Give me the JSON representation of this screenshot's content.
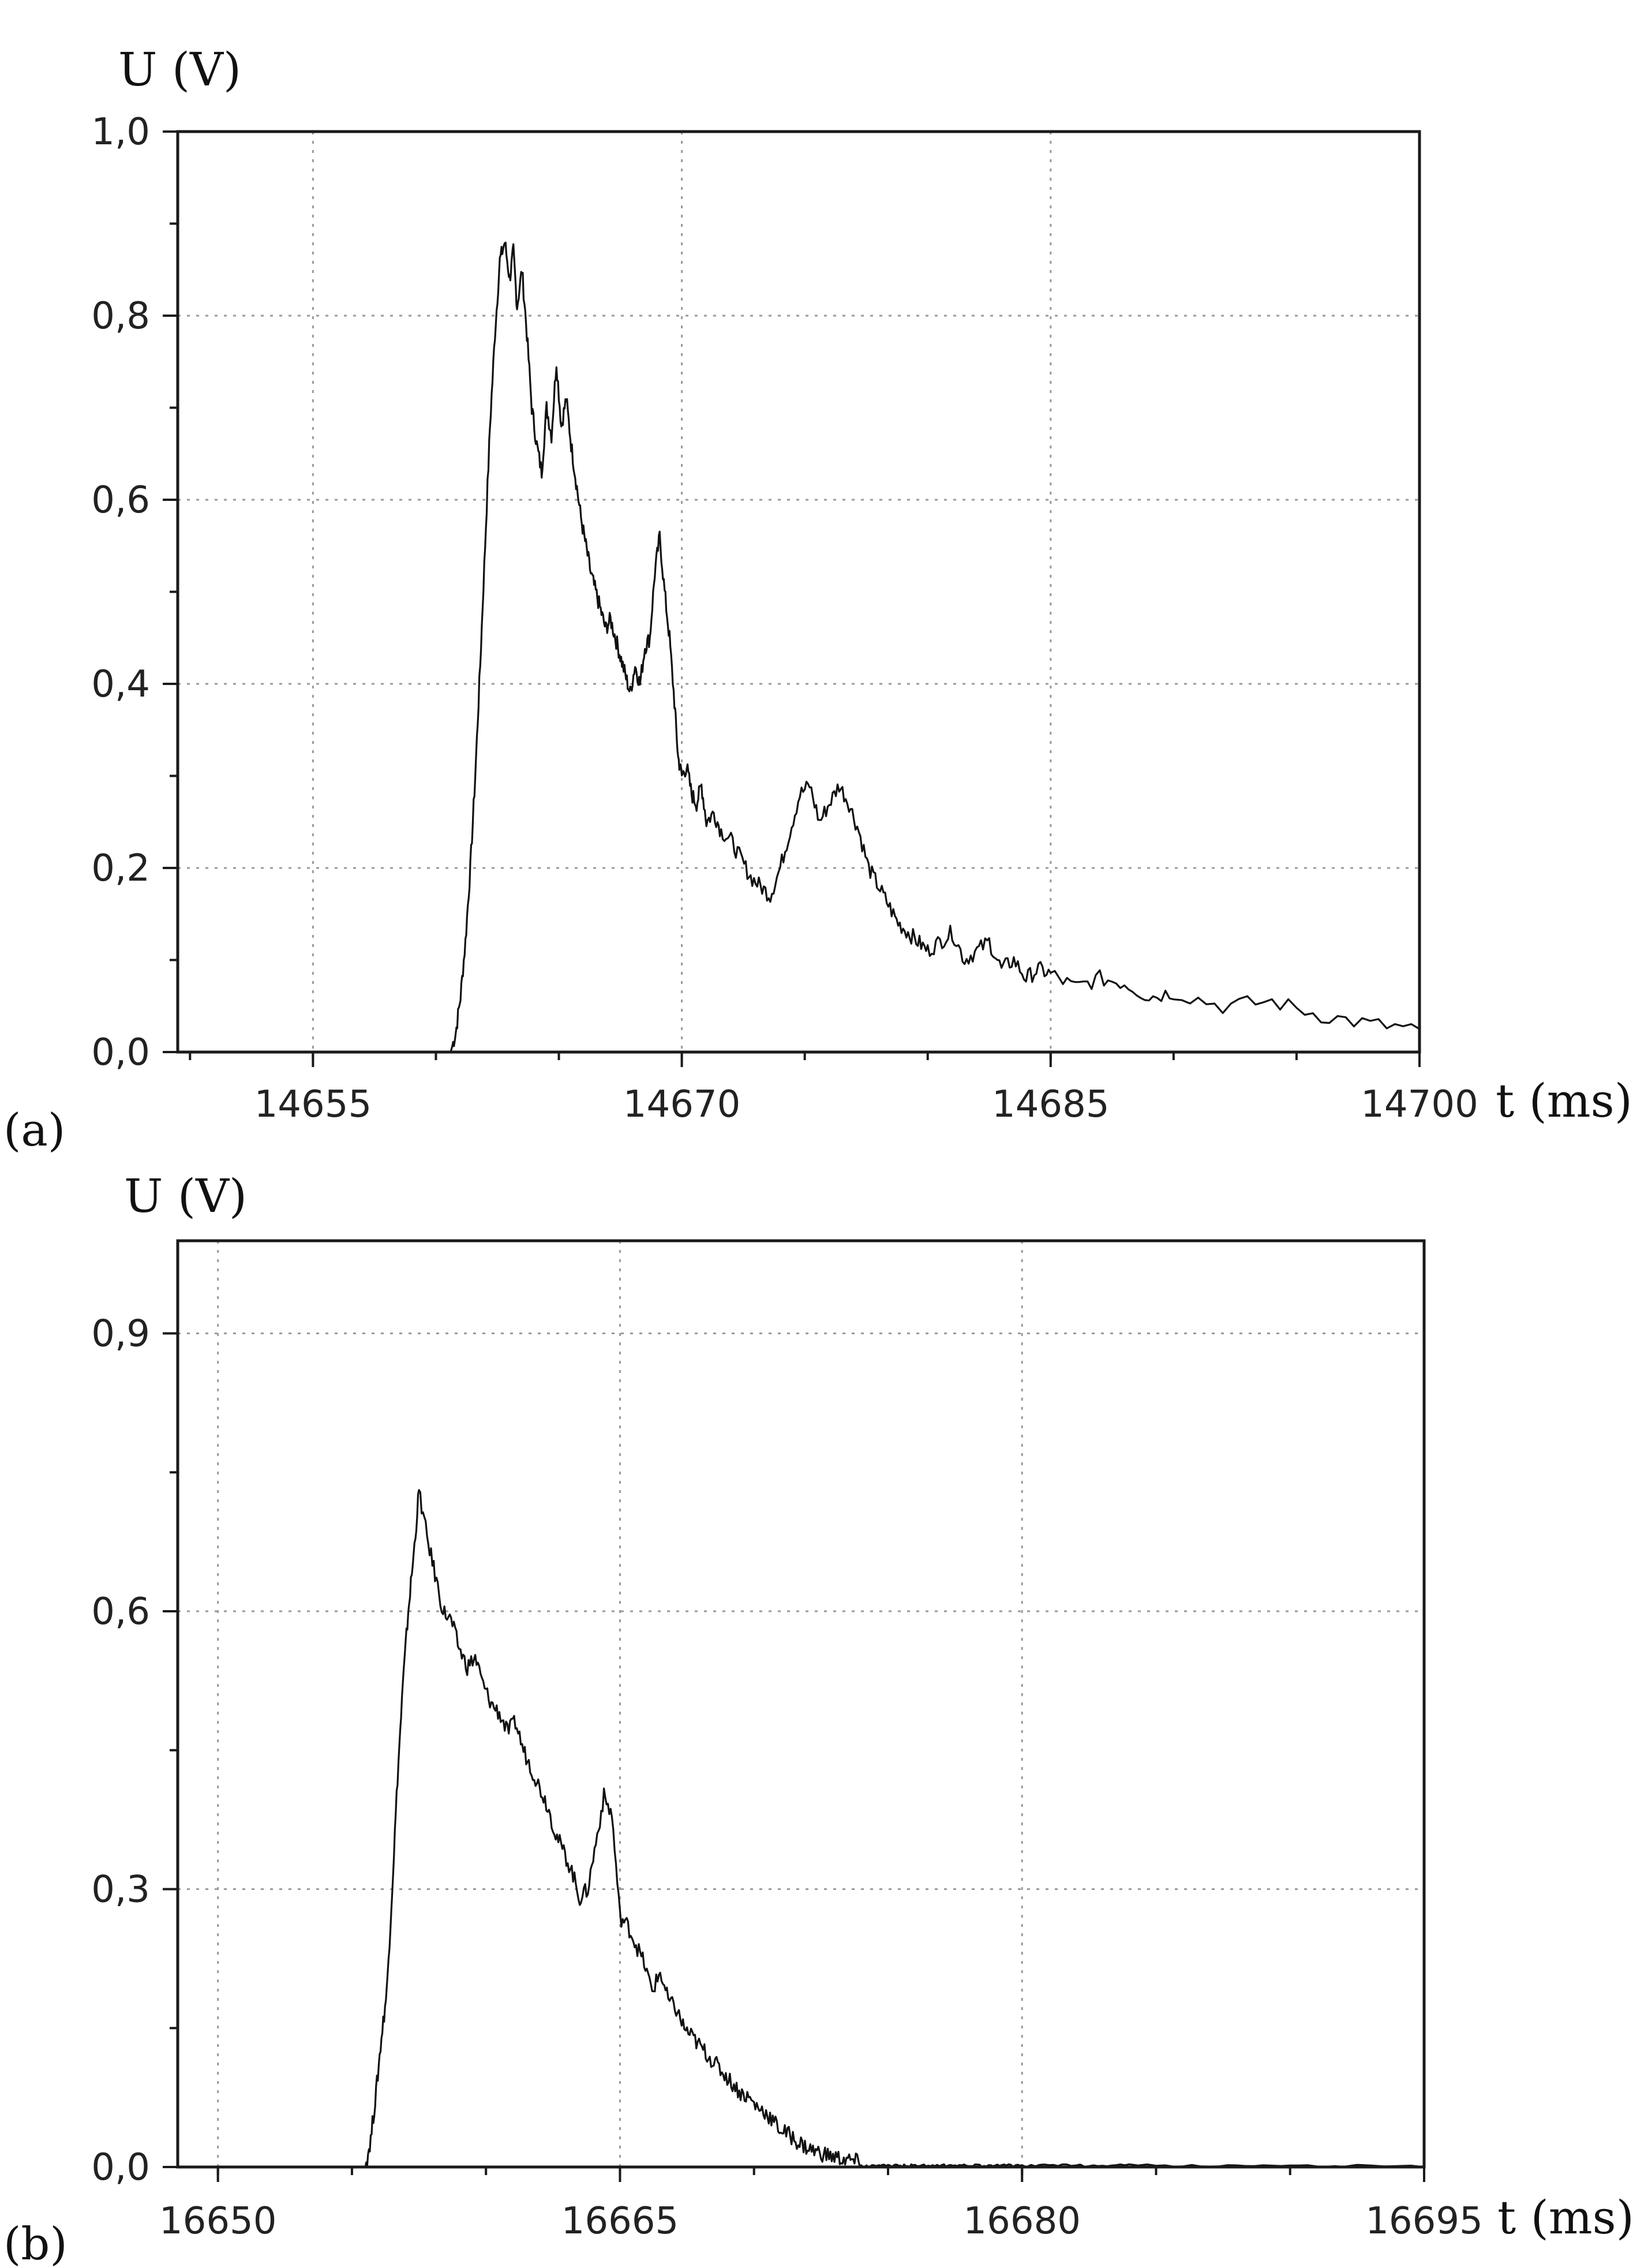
{
  "chart_data": [
    {
      "type": "line",
      "panel_label": "(a)",
      "xlabel": "t (ms)",
      "ylabel": "U (V)",
      "xlim": [
        14649.5,
        14700
      ],
      "ylim": [
        0,
        1.0
      ],
      "xticks": [
        "14655",
        "14670",
        "14685",
        "14700"
      ],
      "yticks": [
        "0,0",
        "0,2",
        "0,4",
        "0,6",
        "0,8",
        "1,0"
      ],
      "grid": true,
      "series": [
        {
          "x": [
            14649.5,
            14660.6,
            14660.8,
            14661.0,
            14661.2,
            14661.4,
            14661.6,
            14661.8,
            14662.0,
            14662.2,
            14662.4,
            14662.6,
            14662.8,
            14663.0,
            14663.15,
            14663.3,
            14663.5,
            14663.7,
            14663.9,
            14664.1,
            14664.3,
            14664.5,
            14664.7,
            14664.9,
            14665.1,
            14665.3,
            14665.5,
            14665.7,
            14665.9,
            14666.1,
            14666.3,
            14666.5,
            14666.7,
            14666.9,
            14667.1,
            14667.3,
            14667.5,
            14667.7,
            14667.9,
            14668.1,
            14668.3,
            14668.5,
            14668.7,
            14668.9,
            14669.1,
            14669.3,
            14669.5,
            14669.7,
            14669.85,
            14670.0,
            14670.2,
            14670.4,
            14670.6,
            14670.8,
            14671.0,
            14671.3,
            14671.6,
            14672.0,
            14672.4,
            14672.8,
            14673.2,
            14673.6,
            14674.0,
            14674.4,
            14674.8,
            14675.2,
            14675.6,
            14676.0,
            14676.4,
            14676.8,
            14677.2,
            14677.6,
            14678.0,
            14678.4,
            14678.8,
            14679.2,
            14679.6,
            14680.0,
            14680.5,
            14681.0,
            14681.5,
            14682.0,
            14682.5,
            14683.0,
            14683.5,
            14684.0,
            14684.5,
            14685.0,
            14686.0,
            14687.0,
            14688.0,
            14689.0,
            14690.0,
            14692.0,
            14694.0,
            14696.0,
            14698.0,
            14700.0
          ],
          "y": [
            0.0,
            0.0,
            0.02,
            0.06,
            0.12,
            0.2,
            0.3,
            0.42,
            0.55,
            0.68,
            0.78,
            0.86,
            0.88,
            0.84,
            0.87,
            0.81,
            0.85,
            0.78,
            0.7,
            0.66,
            0.63,
            0.7,
            0.67,
            0.75,
            0.68,
            0.71,
            0.66,
            0.62,
            0.58,
            0.55,
            0.52,
            0.5,
            0.48,
            0.46,
            0.47,
            0.45,
            0.43,
            0.41,
            0.39,
            0.42,
            0.4,
            0.44,
            0.45,
            0.52,
            0.56,
            0.5,
            0.45,
            0.38,
            0.32,
            0.3,
            0.31,
            0.28,
            0.27,
            0.29,
            0.25,
            0.26,
            0.24,
            0.23,
            0.21,
            0.19,
            0.18,
            0.17,
            0.2,
            0.24,
            0.28,
            0.29,
            0.25,
            0.27,
            0.29,
            0.27,
            0.24,
            0.2,
            0.18,
            0.16,
            0.14,
            0.13,
            0.12,
            0.11,
            0.12,
            0.13,
            0.1,
            0.11,
            0.12,
            0.09,
            0.1,
            0.08,
            0.09,
            0.085,
            0.07,
            0.08,
            0.075,
            0.06,
            0.065,
            0.05,
            0.055,
            0.04,
            0.03,
            0.025
          ]
        }
      ]
    },
    {
      "type": "line",
      "panel_label": "(b)",
      "xlabel": "t (ms)",
      "ylabel": "U (V)",
      "xlim": [
        16648.5,
        16695
      ],
      "ylim": [
        0,
        1.0
      ],
      "xticks": [
        "16650",
        "16665",
        "16680",
        "16695"
      ],
      "yticks": [
        "0,0",
        "0,3",
        "0,6",
        "0,9"
      ],
      "grid": true,
      "series": [
        {
          "x": [
            16648.5,
            16655.5,
            16655.7,
            16655.9,
            16656.1,
            16656.3,
            16656.5,
            16656.7,
            16656.9,
            16657.1,
            16657.3,
            16657.5,
            16657.8,
            16658.1,
            16658.4,
            16658.7,
            16659.0,
            16659.3,
            16659.6,
            16659.9,
            16660.2,
            16660.5,
            16660.8,
            16661.1,
            16661.4,
            16661.7,
            16662.0,
            16662.3,
            16662.6,
            16662.9,
            16663.2,
            16663.5,
            16663.8,
            16664.1,
            16664.4,
            16664.7,
            16665.0,
            16665.3,
            16665.6,
            16665.9,
            16666.2,
            16666.5,
            16666.8,
            16667.1,
            16667.4,
            16667.7,
            16668.0,
            16668.3,
            16668.6,
            16668.9,
            16669.2,
            16669.5,
            16669.8,
            16670.1,
            16670.4,
            16670.7,
            16671.0,
            16671.3,
            16671.6,
            16671.9,
            16672.2,
            16672.5,
            16672.8,
            16673.1,
            16673.4,
            16673.7,
            16674.0,
            16674.4,
            16674.8,
            16675.2,
            16675.6,
            16676.0,
            16676.5,
            16677.0,
            16677.5,
            16678.0,
            16678.5,
            16679.0,
            16679.5,
            16680.0,
            16681.0,
            16682.0,
            16683.0,
            16684.0,
            16686.0,
            16688.0,
            16690.0,
            16692.0,
            16695.0
          ],
          "y": [
            0.0,
            0.0,
            0.03,
            0.08,
            0.14,
            0.19,
            0.3,
            0.42,
            0.52,
            0.6,
            0.66,
            0.73,
            0.68,
            0.64,
            0.6,
            0.59,
            0.56,
            0.54,
            0.55,
            0.52,
            0.5,
            0.49,
            0.47,
            0.48,
            0.45,
            0.43,
            0.41,
            0.39,
            0.36,
            0.34,
            0.32,
            0.29,
            0.3,
            0.35,
            0.4,
            0.38,
            0.27,
            0.26,
            0.24,
            0.22,
            0.19,
            0.21,
            0.18,
            0.17,
            0.15,
            0.14,
            0.13,
            0.12,
            0.11,
            0.1,
            0.09,
            0.08,
            0.075,
            0.065,
            0.06,
            0.05,
            0.04,
            0.035,
            0.028,
            0.022,
            0.018,
            0.015,
            0.012,
            0.01,
            0.008,
            0.006,
            0.005,
            0.004,
            0.003,
            0.002,
            0.001,
            0.0,
            0.0,
            0.0,
            0.0,
            0.0,
            0.0,
            0.0,
            0.0,
            0.0,
            0.0,
            0.0,
            0.0,
            0.0,
            0.0,
            0.0,
            0.0,
            0.0,
            0.0
          ]
        }
      ]
    }
  ]
}
